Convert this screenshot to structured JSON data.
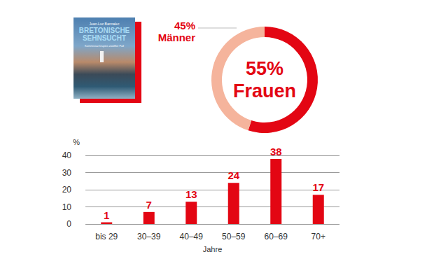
{
  "cover": {
    "author": "Jean-Luc Bannalec",
    "title": "BRETONISCHE SEHNSUCHT",
    "subtitle": "Kommissar Dupins zwölfter Fall"
  },
  "chart_data": [
    {
      "type": "pie",
      "categories": [
        "Frauen",
        "Männer"
      ],
      "values": [
        55,
        45
      ],
      "value_labels": [
        "55%",
        "45%"
      ],
      "colors": [
        "#e30613",
        "#f5b49c"
      ],
      "data_labels": true
    },
    {
      "type": "bar",
      "categories": [
        "bis 29",
        "30–39",
        "40–49",
        "50–59",
        "60–69",
        "70+"
      ],
      "values": [
        1,
        7,
        13,
        24,
        38,
        17
      ],
      "color": "#e30613",
      "ylabel": "%",
      "xlabel": "Jahre",
      "ylim": [
        0,
        40
      ],
      "yticks": [
        0,
        10,
        20,
        30,
        40
      ],
      "grid": true,
      "data_labels": true
    }
  ]
}
